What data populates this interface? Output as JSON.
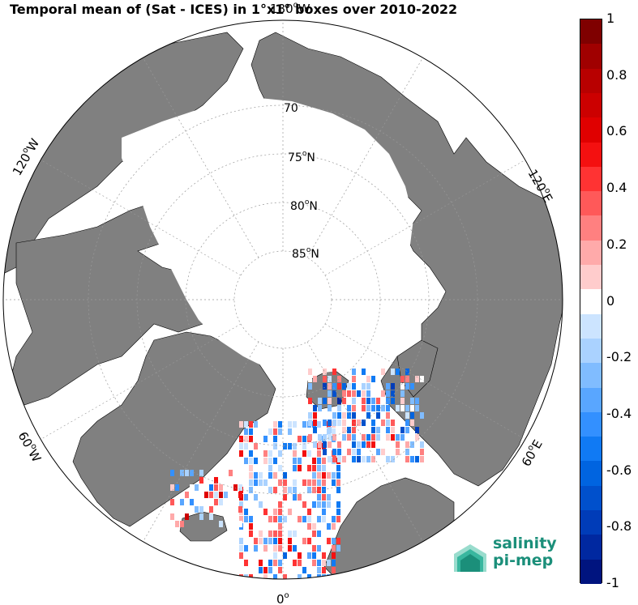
{
  "title": "Temporal mean of (Sat - ICES) in 1°x1° boxes over 2010-2022",
  "map": {
    "projection": "north-polar-stereographic",
    "land_color": "#808080",
    "ice_color": "#ffffff",
    "ocean_color": "#ffffff",
    "latitude_labels": [
      {
        "deg": "70",
        "sup": "o",
        "suffix": "N",
        "text": "70"
      },
      {
        "deg": "75",
        "sup": "o",
        "suffix": "N",
        "text": "75"
      },
      {
        "deg": "80",
        "sup": "o",
        "suffix": "N",
        "text": "80"
      },
      {
        "deg": "85",
        "sup": "o",
        "suffix": "N",
        "text": "85"
      }
    ],
    "longitude_labels": [
      {
        "id": "lon-0",
        "deg": "0",
        "sup": "o",
        "suffix": ""
      },
      {
        "id": "lon-60E",
        "deg": "60",
        "sup": "o",
        "suffix": "E"
      },
      {
        "id": "lon-120E",
        "deg": "120",
        "sup": "o",
        "suffix": "E"
      },
      {
        "id": "lon-180",
        "deg": "180",
        "sup": "o",
        "suffix": "W"
      },
      {
        "id": "lon-120W",
        "deg": "120",
        "sup": "o",
        "suffix": "W"
      },
      {
        "id": "lon-60W",
        "deg": "60",
        "sup": "o",
        "suffix": "W"
      }
    ]
  },
  "colorbar": {
    "min": -1,
    "max": 1,
    "ticks": [
      "1",
      "0.8",
      "0.6",
      "0.4",
      "0.2",
      "0",
      "-0.2",
      "-0.4",
      "-0.6",
      "-0.8",
      "-1"
    ],
    "colors": [
      "#7f0000",
      "#a00000",
      "#b80000",
      "#cc0000",
      "#e00000",
      "#f41010",
      "#ff3333",
      "#ff5959",
      "#ff8080",
      "#ffaaaa",
      "#ffcccc",
      "#ffffff",
      "#cce4ff",
      "#aad2ff",
      "#80bcff",
      "#59a6ff",
      "#3390ff",
      "#107af4",
      "#0064e0",
      "#0050cc",
      "#003cb8",
      "#0028a0",
      "#00147f"
    ]
  },
  "logo": {
    "line1": "salinity",
    "line2": "pi-mep",
    "color": "#1b8f7a"
  }
}
